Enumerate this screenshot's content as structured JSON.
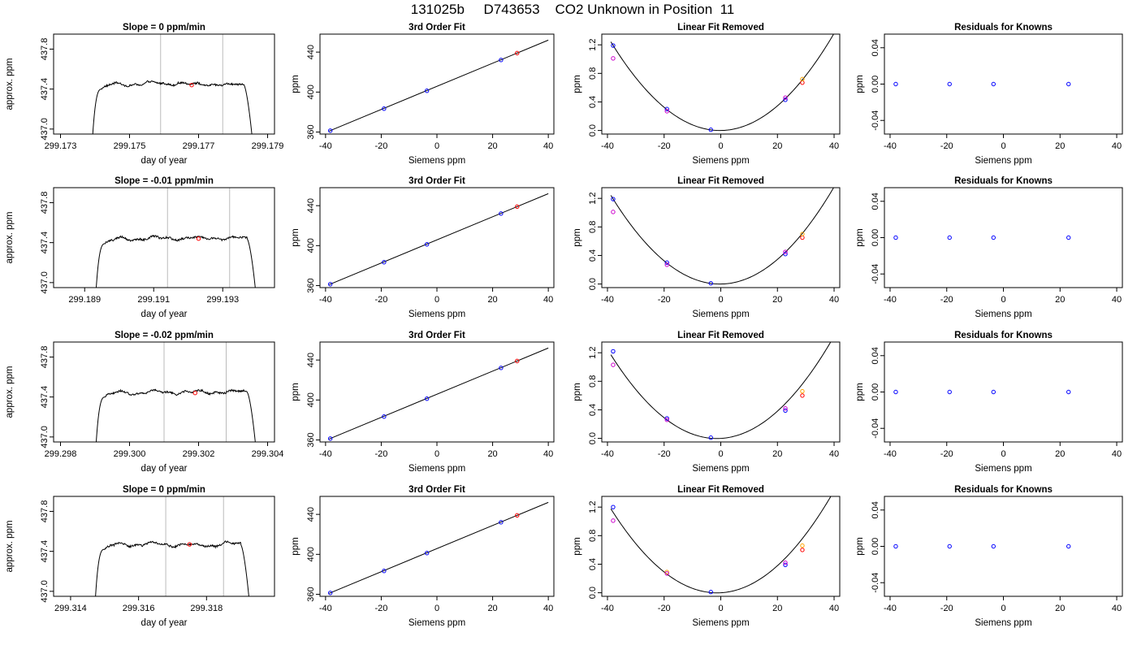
{
  "main_title": "131025b     D743653    CO2 Unknown in Position  11",
  "chart_data": [
    {
      "type": "line",
      "title": "Slope =  0  ppm/min",
      "xlabel": "day of year",
      "ylabel": "approx. ppm",
      "xlim": [
        299.1728,
        299.1792
      ],
      "ylim": [
        436.95,
        437.95
      ],
      "xticks": [
        299.173,
        299.175,
        299.177,
        299.179
      ],
      "xtick_labels": [
        "299.173",
        "299.175",
        "299.177",
        "299.179"
      ],
      "yticks": [
        437.0,
        437.4,
        437.8
      ],
      "ytick_labels": [
        "437.0",
        "437.4",
        "437.8"
      ],
      "rise_start": 299.1739,
      "plateau_start": 299.1742,
      "plateau_end": 299.1783,
      "fall_end": 299.1786,
      "plateau_level": 437.45,
      "vlines": [
        299.1759,
        299.1777
      ],
      "marker": [
        299.1768,
        437.44
      ],
      "curve_color": "#000000",
      "vline_color": "#bbbbbb",
      "marker_color": "#ff0000"
    },
    {
      "type": "scatter",
      "title": "3rd Order Fit",
      "xlabel": "Siemens ppm",
      "ylabel": "ppm",
      "xlim": [
        -42,
        42
      ],
      "ylim": [
        358,
        458
      ],
      "xticks": [
        -40,
        -20,
        0,
        20,
        40
      ],
      "xtick_labels": [
        "-40",
        "-20",
        "0",
        "20",
        "40"
      ],
      "yticks": [
        360,
        400,
        440
      ],
      "ytick_labels": [
        "360",
        "400",
        "440"
      ],
      "fit_line": [
        [
          -38.7,
          361
        ],
        [
          40,
          452
        ]
      ],
      "points": [
        {
          "x": -38.3,
          "y": 361.4,
          "color": "#0000ff"
        },
        {
          "x": -19,
          "y": 383.4,
          "color": "#0000ff"
        },
        {
          "x": -3.6,
          "y": 401.3,
          "color": "#0000ff"
        },
        {
          "x": 23,
          "y": 432.1,
          "color": "#0000ff"
        },
        {
          "x": 28.8,
          "y": 439,
          "color": "#ff0000"
        }
      ]
    },
    {
      "type": "scatter",
      "title": "Linear Fit Removed",
      "xlabel": "Siemens ppm",
      "ylabel": "ppm",
      "xlim": [
        -42,
        42
      ],
      "ylim": [
        -0.05,
        1.35
      ],
      "xticks": [
        -40,
        -20,
        0,
        20,
        40
      ],
      "xtick_labels": [
        "-40",
        "-20",
        "0",
        "20",
        "40"
      ],
      "yticks": [
        0.0,
        0.4,
        0.8,
        1.2
      ],
      "ytick_labels": [
        "0.0",
        "0.4",
        "0.8",
        "1.2"
      ],
      "parabola": {
        "a": 0.000838,
        "b": 0.0005,
        "c": 0.0,
        "x0": -38.8,
        "x1": 40
      },
      "points": [
        {
          "x": -38,
          "y": 1.19,
          "color": "#0000ff"
        },
        {
          "x": -38,
          "y": 1.01,
          "color": "#cc00cc"
        },
        {
          "x": -19,
          "y": 0.3,
          "color": "#0000ff"
        },
        {
          "x": -19,
          "y": 0.27,
          "color": "#cc00cc"
        },
        {
          "x": -3.5,
          "y": 0.01,
          "color": "#0000ff"
        },
        {
          "x": 22.8,
          "y": 0.43,
          "color": "#0000ff"
        },
        {
          "x": 22.8,
          "y": 0.46,
          "color": "#cc00cc"
        },
        {
          "x": 28.8,
          "y": 0.67,
          "color": "#ff0000"
        },
        {
          "x": 28.8,
          "y": 0.72,
          "color": "#ffa500"
        }
      ]
    },
    {
      "type": "scatter",
      "title": "Residuals for Knowns",
      "xlabel": "Siemens ppm",
      "ylabel": "ppm",
      "xlim": [
        -42,
        42
      ],
      "ylim": [
        -0.055,
        0.055
      ],
      "xticks": [
        -40,
        -20,
        0,
        20,
        40
      ],
      "xtick_labels": [
        "-40",
        "-20",
        "0",
        "20",
        "40"
      ],
      "yticks": [
        -0.04,
        0.0,
        0.04
      ],
      "ytick_labels": [
        "-0.04",
        "0.00",
        "0.04"
      ],
      "points": [
        {
          "x": -38,
          "y": 0,
          "color": "#0000ff"
        },
        {
          "x": -19,
          "y": 0,
          "color": "#0000ff"
        },
        {
          "x": -3.5,
          "y": 0,
          "color": "#0000ff"
        },
        {
          "x": 23,
          "y": 0,
          "color": "#0000ff"
        }
      ]
    },
    {
      "type": "line",
      "title": "Slope =  -0.01  ppm/min",
      "xlabel": "day of year",
      "ylabel": "approx. ppm",
      "xlim": [
        299.1881,
        299.1945
      ],
      "ylim": [
        436.95,
        437.95
      ],
      "xticks": [
        299.189,
        299.191,
        299.193
      ],
      "xtick_labels": [
        "299.189",
        "299.191",
        "299.193"
      ],
      "yticks": [
        437.0,
        437.4,
        437.8
      ],
      "ytick_labels": [
        "437.0",
        "437.4",
        "437.8"
      ],
      "rise_start": 299.1893,
      "plateau_start": 299.1896,
      "plateau_end": 299.1937,
      "fall_end": 299.194,
      "plateau_level": 437.44,
      "vlines": [
        299.1914,
        299.1932
      ],
      "marker": [
        299.1923,
        437.44
      ],
      "curve_color": "#000000",
      "vline_color": "#bbbbbb",
      "marker_color": "#ff0000"
    },
    {
      "type": "scatter",
      "title": "3rd Order Fit",
      "xlabel": "Siemens ppm",
      "ylabel": "ppm",
      "xlim": [
        -42,
        42
      ],
      "ylim": [
        358,
        458
      ],
      "xticks": [
        -40,
        -20,
        0,
        20,
        40
      ],
      "xtick_labels": [
        "-40",
        "-20",
        "0",
        "20",
        "40"
      ],
      "yticks": [
        360,
        400,
        440
      ],
      "ytick_labels": [
        "360",
        "400",
        "440"
      ],
      "fit_line": [
        [
          -38.7,
          361
        ],
        [
          40,
          452
        ]
      ],
      "points": [
        {
          "x": -38.3,
          "y": 361.4,
          "color": "#0000ff"
        },
        {
          "x": -19,
          "y": 383.4,
          "color": "#0000ff"
        },
        {
          "x": -3.6,
          "y": 401.3,
          "color": "#0000ff"
        },
        {
          "x": 23,
          "y": 432.1,
          "color": "#0000ff"
        },
        {
          "x": 28.8,
          "y": 439,
          "color": "#ff0000"
        }
      ]
    },
    {
      "type": "scatter",
      "title": "Linear Fit Removed",
      "xlabel": "Siemens ppm",
      "ylabel": "ppm",
      "xlim": [
        -42,
        42
      ],
      "ylim": [
        -0.05,
        1.35
      ],
      "xticks": [
        -40,
        -20,
        0,
        20,
        40
      ],
      "xtick_labels": [
        "-40",
        "-20",
        "0",
        "20",
        "40"
      ],
      "yticks": [
        0.0,
        0.4,
        0.8,
        1.2
      ],
      "ytick_labels": [
        "0.0",
        "0.4",
        "0.8",
        "1.2"
      ],
      "parabola": {
        "a": 0.000838,
        "b": 0.0005,
        "c": 0.0,
        "x0": -38.8,
        "x1": 40
      },
      "points": [
        {
          "x": -38,
          "y": 1.19,
          "color": "#0000ff"
        },
        {
          "x": -38,
          "y": 1.01,
          "color": "#cc00cc"
        },
        {
          "x": -19,
          "y": 0.3,
          "color": "#0000ff"
        },
        {
          "x": -19,
          "y": 0.27,
          "color": "#cc00cc"
        },
        {
          "x": -3.5,
          "y": 0.01,
          "color": "#0000ff"
        },
        {
          "x": 22.8,
          "y": 0.42,
          "color": "#0000ff"
        },
        {
          "x": 22.8,
          "y": 0.45,
          "color": "#cc00cc"
        },
        {
          "x": 28.8,
          "y": 0.65,
          "color": "#ff0000"
        },
        {
          "x": 28.8,
          "y": 0.7,
          "color": "#ffa500"
        }
      ]
    },
    {
      "type": "scatter",
      "title": "Residuals for Knowns",
      "xlabel": "Siemens ppm",
      "ylabel": "ppm",
      "xlim": [
        -42,
        42
      ],
      "ylim": [
        -0.055,
        0.055
      ],
      "xticks": [
        -40,
        -20,
        0,
        20,
        40
      ],
      "xtick_labels": [
        "-40",
        "-20",
        "0",
        "20",
        "40"
      ],
      "yticks": [
        -0.04,
        0.0,
        0.04
      ],
      "ytick_labels": [
        "-0.04",
        "0.00",
        "0.04"
      ],
      "points": [
        {
          "x": -38,
          "y": 0,
          "color": "#0000ff"
        },
        {
          "x": -19,
          "y": 0,
          "color": "#0000ff"
        },
        {
          "x": -3.5,
          "y": 0,
          "color": "#0000ff"
        },
        {
          "x": 23,
          "y": 0,
          "color": "#0000ff"
        }
      ]
    },
    {
      "type": "line",
      "title": "Slope =  -0.02  ppm/min",
      "xlabel": "day of year",
      "ylabel": "approx. ppm",
      "xlim": [
        299.2978,
        299.3042
      ],
      "ylim": [
        436.95,
        437.95
      ],
      "xticks": [
        299.298,
        299.3,
        299.302,
        299.304
      ],
      "xtick_labels": [
        "299.298",
        "299.300",
        "299.302",
        "299.304"
      ],
      "yticks": [
        437.0,
        437.4,
        437.8
      ],
      "ytick_labels": [
        "437.0",
        "437.4",
        "437.8"
      ],
      "rise_start": 299.299,
      "plateau_start": 299.2993,
      "plateau_end": 299.3034,
      "fall_end": 299.3037,
      "plateau_level": 437.45,
      "vlines": [
        299.301,
        299.3028
      ],
      "marker": [
        299.3019,
        437.44
      ],
      "curve_color": "#000000",
      "vline_color": "#bbbbbb",
      "marker_color": "#ff0000"
    },
    {
      "type": "scatter",
      "title": "3rd Order Fit",
      "xlabel": "Siemens ppm",
      "ylabel": "ppm",
      "xlim": [
        -42,
        42
      ],
      "ylim": [
        358,
        458
      ],
      "xticks": [
        -40,
        -20,
        0,
        20,
        40
      ],
      "xtick_labels": [
        "-40",
        "-20",
        "0",
        "20",
        "40"
      ],
      "yticks": [
        360,
        400,
        440
      ],
      "ytick_labels": [
        "360",
        "400",
        "440"
      ],
      "fit_line": [
        [
          -38.7,
          361
        ],
        [
          40,
          452
        ]
      ],
      "points": [
        {
          "x": -38.3,
          "y": 361.4,
          "color": "#0000ff"
        },
        {
          "x": -19,
          "y": 383.4,
          "color": "#0000ff"
        },
        {
          "x": -3.6,
          "y": 401.3,
          "color": "#0000ff"
        },
        {
          "x": 23,
          "y": 432.1,
          "color": "#0000ff"
        },
        {
          "x": 28.8,
          "y": 439,
          "color": "#ff0000"
        }
      ]
    },
    {
      "type": "scatter",
      "title": "Linear Fit Removed",
      "xlabel": "Siemens ppm",
      "ylabel": "ppm",
      "xlim": [
        -42,
        42
      ],
      "ylim": [
        -0.05,
        1.35
      ],
      "xticks": [
        -40,
        -20,
        0,
        20,
        40
      ],
      "xtick_labels": [
        "-40",
        "-20",
        "0",
        "20",
        "40"
      ],
      "yticks": [
        0.0,
        0.4,
        0.8,
        1.2
      ],
      "ytick_labels": [
        "0.0",
        "0.4",
        "0.8",
        "1.2"
      ],
      "parabola": {
        "a": 0.000838,
        "b": 0.0023,
        "c": 0.0,
        "x0": -38.8,
        "x1": 40
      },
      "points": [
        {
          "x": -38,
          "y": 1.22,
          "color": "#0000ff"
        },
        {
          "x": -38,
          "y": 1.03,
          "color": "#cc00cc"
        },
        {
          "x": -19,
          "y": 0.28,
          "color": "#0000ff"
        },
        {
          "x": -19,
          "y": 0.26,
          "color": "#cc00cc"
        },
        {
          "x": -3.5,
          "y": 0.01,
          "color": "#0000ff"
        },
        {
          "x": 22.8,
          "y": 0.39,
          "color": "#0000ff"
        },
        {
          "x": 22.8,
          "y": 0.42,
          "color": "#cc00cc"
        },
        {
          "x": 28.8,
          "y": 0.6,
          "color": "#ff0000"
        },
        {
          "x": 28.8,
          "y": 0.66,
          "color": "#ffa500"
        }
      ]
    },
    {
      "type": "scatter",
      "title": "Residuals for Knowns",
      "xlabel": "Siemens ppm",
      "ylabel": "ppm",
      "xlim": [
        -42,
        42
      ],
      "ylim": [
        -0.055,
        0.055
      ],
      "xticks": [
        -40,
        -20,
        0,
        20,
        40
      ],
      "xtick_labels": [
        "-40",
        "-20",
        "0",
        "20",
        "40"
      ],
      "yticks": [
        -0.04,
        0.0,
        0.04
      ],
      "ytick_labels": [
        "-0.04",
        "0.00",
        "0.04"
      ],
      "points": [
        {
          "x": -38,
          "y": 0,
          "color": "#0000ff"
        },
        {
          "x": -19,
          "y": 0,
          "color": "#0000ff"
        },
        {
          "x": -3.5,
          "y": 0,
          "color": "#0000ff"
        },
        {
          "x": 23,
          "y": 0,
          "color": "#0000ff"
        }
      ]
    },
    {
      "type": "line",
      "title": "Slope =  0  ppm/min",
      "xlabel": "day of year",
      "ylabel": "approx. ppm",
      "xlim": [
        299.3135,
        299.32
      ],
      "ylim": [
        436.95,
        437.95
      ],
      "xticks": [
        299.314,
        299.316,
        299.318
      ],
      "xtick_labels": [
        "299.314",
        "299.316",
        "299.318"
      ],
      "yticks": [
        437.0,
        437.4,
        437.8
      ],
      "ytick_labels": [
        "437.0",
        "437.4",
        "437.8"
      ],
      "rise_start": 299.3147,
      "plateau_start": 299.315,
      "plateau_end": 299.319,
      "fall_end": 299.3193,
      "plateau_level": 437.47,
      "vlines": [
        299.3168,
        299.3185
      ],
      "marker": [
        299.3175,
        437.47
      ],
      "curve_color": "#000000",
      "vline_color": "#bbbbbb",
      "marker_color": "#ff0000"
    },
    {
      "type": "scatter",
      "title": "3rd Order Fit",
      "xlabel": "Siemens ppm",
      "ylabel": "ppm",
      "xlim": [
        -42,
        42
      ],
      "ylim": [
        358,
        458
      ],
      "xticks": [
        -40,
        -20,
        0,
        20,
        40
      ],
      "xtick_labels": [
        "-40",
        "-20",
        "0",
        "20",
        "40"
      ],
      "yticks": [
        360,
        400,
        440
      ],
      "ytick_labels": [
        "360",
        "400",
        "440"
      ],
      "fit_line": [
        [
          -38.7,
          361
        ],
        [
          40,
          452
        ]
      ],
      "points": [
        {
          "x": -38.3,
          "y": 361.4,
          "color": "#0000ff"
        },
        {
          "x": -19,
          "y": 383.4,
          "color": "#0000ff"
        },
        {
          "x": -3.6,
          "y": 401.3,
          "color": "#0000ff"
        },
        {
          "x": 23,
          "y": 432.1,
          "color": "#0000ff"
        },
        {
          "x": 28.8,
          "y": 439,
          "color": "#ff0000"
        }
      ]
    },
    {
      "type": "scatter",
      "title": "Linear Fit Removed",
      "xlabel": "Siemens ppm",
      "ylabel": "ppm",
      "xlim": [
        -42,
        42
      ],
      "ylim": [
        -0.05,
        1.35
      ],
      "xticks": [
        -40,
        -20,
        0,
        20,
        40
      ],
      "xtick_labels": [
        "-40",
        "-20",
        "0",
        "20",
        "40"
      ],
      "yticks": [
        0.0,
        0.4,
        0.8,
        1.2
      ],
      "ytick_labels": [
        "0.0",
        "0.4",
        "0.8",
        "1.2"
      ],
      "parabola": {
        "a": 0.000838,
        "b": 0.0022,
        "c": 0.0,
        "x0": -38.8,
        "x1": 40
      },
      "points": [
        {
          "x": -38,
          "y": 1.2,
          "color": "#0000ff"
        },
        {
          "x": -38,
          "y": 1.01,
          "color": "#cc00cc"
        },
        {
          "x": -19,
          "y": 0.29,
          "color": "#ffa500"
        },
        {
          "x": -19,
          "y": 0.27,
          "color": "#cc00cc"
        },
        {
          "x": -3.5,
          "y": 0.01,
          "color": "#0000ff"
        },
        {
          "x": 22.8,
          "y": 0.39,
          "color": "#0000ff"
        },
        {
          "x": 22.8,
          "y": 0.42,
          "color": "#cc00cc"
        },
        {
          "x": 28.8,
          "y": 0.6,
          "color": "#ff0000"
        },
        {
          "x": 28.8,
          "y": 0.66,
          "color": "#ffa500"
        }
      ]
    },
    {
      "type": "scatter",
      "title": "Residuals for Knowns",
      "xlabel": "Siemens ppm",
      "ylabel": "ppm",
      "xlim": [
        -42,
        42
      ],
      "ylim": [
        -0.055,
        0.055
      ],
      "xticks": [
        -40,
        -20,
        0,
        20,
        40
      ],
      "xtick_labels": [
        "-40",
        "-20",
        "0",
        "20",
        "40"
      ],
      "yticks": [
        -0.04,
        0.0,
        0.04
      ],
      "ytick_labels": [
        "-0.04",
        "0.00",
        "0.04"
      ],
      "points": [
        {
          "x": -38,
          "y": 0,
          "color": "#0000ff"
        },
        {
          "x": -19,
          "y": 0,
          "color": "#0000ff"
        },
        {
          "x": -3.5,
          "y": 0,
          "color": "#0000ff"
        },
        {
          "x": 23,
          "y": 0,
          "color": "#0000ff"
        }
      ]
    }
  ]
}
